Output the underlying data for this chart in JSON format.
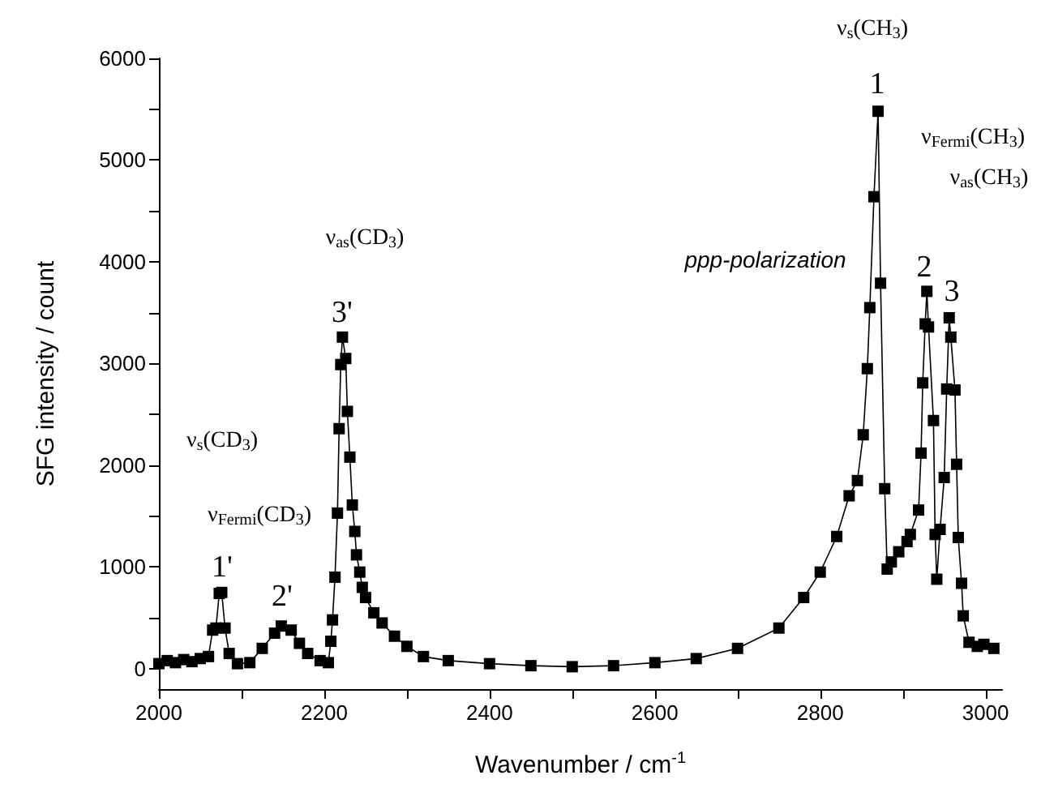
{
  "chart_data": {
    "type": "line",
    "xlabel": "Wavenumber / cm$^{-1}$",
    "ylabel": "SFG intensity / count",
    "xlim": [
      2000,
      3020
    ],
    "xticks": [
      2000,
      2200,
      2400,
      2600,
      2800,
      3000
    ],
    "ylim": [
      -200,
      6000
    ],
    "yticks": [
      0,
      1000,
      2000,
      3000,
      4000,
      5000,
      6000
    ],
    "grid": false,
    "marker": "square",
    "line_style": "solid",
    "series": [
      {
        "color": "#000000",
        "x": [
          2000,
          2010,
          2020,
          2030,
          2040,
          2050,
          2060,
          2065,
          2069,
          2073,
          2076,
          2080,
          2085,
          2095,
          2110,
          2125,
          2140,
          2148,
          2160,
          2170,
          2180,
          2195,
          2205,
          2208,
          2210,
          2213,
          2216,
          2218,
          2220,
          2222,
          2226,
          2228,
          2231,
          2234,
          2237,
          2239,
          2243,
          2246,
          2250,
          2260,
          2270,
          2285,
          2300,
          2320,
          2350,
          2400,
          2450,
          2500,
          2550,
          2600,
          2650,
          2700,
          2750,
          2780,
          2800,
          2820,
          2835,
          2845,
          2852,
          2857,
          2860,
          2865,
          2870,
          2873,
          2878,
          2881,
          2886,
          2895,
          2905,
          2909,
          2919,
          2922,
          2924,
          2927,
          2929,
          2931,
          2937,
          2939,
          2941,
          2945,
          2950,
          2953,
          2956,
          2958,
          2963,
          2965,
          2967,
          2971,
          2973,
          2980,
          2990,
          2998,
          3010
        ],
        "values": [
          50,
          80,
          60,
          90,
          70,
          100,
          120,
          380,
          400,
          740,
          750,
          400,
          150,
          50,
          60,
          200,
          350,
          420,
          380,
          250,
          150,
          80,
          60,
          270,
          480,
          900,
          1530,
          2360,
          2990,
          3260,
          3050,
          2530,
          2080,
          1610,
          1350,
          1120,
          950,
          800,
          700,
          550,
          450,
          320,
          220,
          120,
          80,
          50,
          30,
          20,
          30,
          60,
          100,
          200,
          400,
          700,
          950,
          1300,
          1700,
          1850,
          2300,
          2950,
          3550,
          4640,
          5480,
          3790,
          1770,
          980,
          1050,
          1150,
          1250,
          1320,
          1560,
          2120,
          2810,
          3390,
          3710,
          3360,
          2440,
          1320,
          880,
          1370,
          1880,
          2750,
          3450,
          3260,
          2740,
          2010,
          1290,
          840,
          520,
          260,
          220,
          240,
          200
        ]
      }
    ],
    "annotations": [
      "ν$_{s}$(CD$_{3}$)",
      "ν$_{Fermi}$(CD$_{3}$)",
      "1'",
      "2'",
      "ν$_{as}$(CD$_{3}$)",
      "3'",
      "ppp-polarization",
      "ν$_{s}$(CH$_{3}$)",
      "1",
      "ν$_{Fermi}$(CH$_{3}$)",
      "2",
      "3",
      "ν$_{as}$(CH$_{3}$)"
    ]
  }
}
